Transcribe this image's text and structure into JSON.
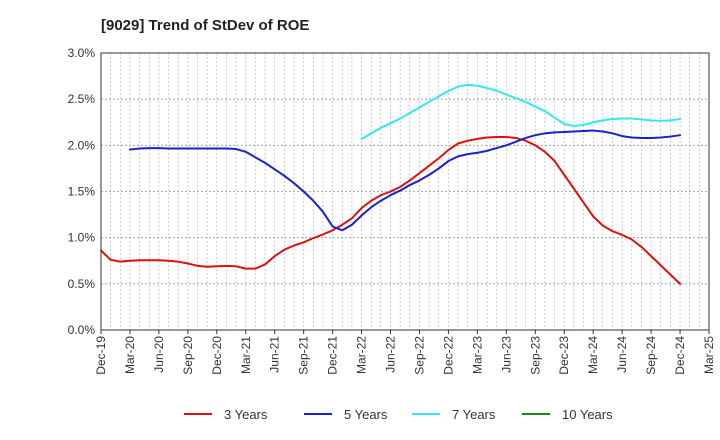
{
  "chart_data": {
    "type": "line",
    "title": "[9029]  Trend of StDev of ROE",
    "xlabel": "",
    "ylabel": "",
    "ylim": [
      0,
      3.0
    ],
    "y_ticks": [
      "0.0%",
      "0.5%",
      "1.0%",
      "1.5%",
      "2.0%",
      "2.5%",
      "3.0%"
    ],
    "x_ticks": [
      "Dec-19",
      "Mar-20",
      "Jun-20",
      "Sep-20",
      "Dec-20",
      "Mar-21",
      "Jun-21",
      "Sep-21",
      "Dec-21",
      "Mar-22",
      "Jun-22",
      "Sep-22",
      "Dec-22",
      "Mar-23",
      "Jun-23",
      "Sep-23",
      "Dec-23",
      "Mar-24",
      "Jun-24",
      "Sep-24",
      "Dec-24",
      "Mar-25"
    ],
    "x_range": [
      "2019-12",
      "2025-03"
    ],
    "grid": true,
    "legend_position": "bottom",
    "series": [
      {
        "name": "3 Years",
        "color": "#dd1111",
        "points": [
          [
            "2019-12",
            0.86
          ],
          [
            "2020-01",
            0.76
          ],
          [
            "2020-02",
            0.74
          ],
          [
            "2020-03",
            0.75
          ],
          [
            "2020-04",
            0.755
          ],
          [
            "2020-05",
            0.755
          ],
          [
            "2020-06",
            0.755
          ],
          [
            "2020-07",
            0.75
          ],
          [
            "2020-08",
            0.74
          ],
          [
            "2020-09",
            0.72
          ],
          [
            "2020-10",
            0.695
          ],
          [
            "2020-11",
            0.685
          ],
          [
            "2020-12",
            0.69
          ],
          [
            "2021-01",
            0.695
          ],
          [
            "2021-02",
            0.69
          ],
          [
            "2021-03",
            0.665
          ],
          [
            "2021-04",
            0.665
          ],
          [
            "2021-05",
            0.71
          ],
          [
            "2021-06",
            0.8
          ],
          [
            "2021-07",
            0.87
          ],
          [
            "2021-08",
            0.915
          ],
          [
            "2021-09",
            0.95
          ],
          [
            "2021-10",
            0.995
          ],
          [
            "2021-11",
            1.035
          ],
          [
            "2021-12",
            1.08
          ],
          [
            "2022-01",
            1.14
          ],
          [
            "2022-02",
            1.21
          ],
          [
            "2022-03",
            1.32
          ],
          [
            "2022-04",
            1.4
          ],
          [
            "2022-05",
            1.46
          ],
          [
            "2022-06",
            1.5
          ],
          [
            "2022-07",
            1.55
          ],
          [
            "2022-08",
            1.62
          ],
          [
            "2022-09",
            1.7
          ],
          [
            "2022-10",
            1.78
          ],
          [
            "2022-11",
            1.86
          ],
          [
            "2022-12",
            1.95
          ],
          [
            "2023-01",
            2.02
          ],
          [
            "2023-02",
            2.05
          ],
          [
            "2023-03",
            2.07
          ],
          [
            "2023-04",
            2.085
          ],
          [
            "2023-05",
            2.09
          ],
          [
            "2023-06",
            2.09
          ],
          [
            "2023-07",
            2.08
          ],
          [
            "2023-08",
            2.05
          ],
          [
            "2023-09",
            2.0
          ],
          [
            "2023-10",
            1.93
          ],
          [
            "2023-11",
            1.83
          ],
          [
            "2023-12",
            1.68
          ],
          [
            "2024-01",
            1.53
          ],
          [
            "2024-02",
            1.38
          ],
          [
            "2024-03",
            1.23
          ],
          [
            "2024-04",
            1.13
          ],
          [
            "2024-05",
            1.07
          ],
          [
            "2024-06",
            1.03
          ],
          [
            "2024-07",
            0.98
          ],
          [
            "2024-08",
            0.9
          ],
          [
            "2024-09",
            0.8
          ],
          [
            "2024-10",
            0.7
          ],
          [
            "2024-11",
            0.6
          ],
          [
            "2024-12",
            0.5
          ]
        ]
      },
      {
        "name": "5 Years",
        "color": "#1a23c8",
        "points": [
          [
            "2020-03",
            1.955
          ],
          [
            "2020-04",
            1.965
          ],
          [
            "2020-05",
            1.97
          ],
          [
            "2020-06",
            1.97
          ],
          [
            "2020-07",
            1.965
          ],
          [
            "2020-08",
            1.965
          ],
          [
            "2020-09",
            1.965
          ],
          [
            "2020-10",
            1.965
          ],
          [
            "2020-11",
            1.965
          ],
          [
            "2020-12",
            1.965
          ],
          [
            "2021-01",
            1.965
          ],
          [
            "2021-02",
            1.96
          ],
          [
            "2021-03",
            1.93
          ],
          [
            "2021-04",
            1.87
          ],
          [
            "2021-05",
            1.81
          ],
          [
            "2021-06",
            1.74
          ],
          [
            "2021-07",
            1.67
          ],
          [
            "2021-08",
            1.59
          ],
          [
            "2021-09",
            1.5
          ],
          [
            "2021-10",
            1.4
          ],
          [
            "2021-11",
            1.28
          ],
          [
            "2021-12",
            1.12
          ],
          [
            "2022-01",
            1.08
          ],
          [
            "2022-02",
            1.14
          ],
          [
            "2022-03",
            1.24
          ],
          [
            "2022-04",
            1.33
          ],
          [
            "2022-05",
            1.4
          ],
          [
            "2022-06",
            1.46
          ],
          [
            "2022-07",
            1.51
          ],
          [
            "2022-08",
            1.57
          ],
          [
            "2022-09",
            1.62
          ],
          [
            "2022-10",
            1.68
          ],
          [
            "2022-11",
            1.75
          ],
          [
            "2022-12",
            1.83
          ],
          [
            "2023-01",
            1.88
          ],
          [
            "2023-02",
            1.905
          ],
          [
            "2023-03",
            1.92
          ],
          [
            "2023-04",
            1.94
          ],
          [
            "2023-05",
            1.97
          ],
          [
            "2023-06",
            2.0
          ],
          [
            "2023-07",
            2.04
          ],
          [
            "2023-08",
            2.08
          ],
          [
            "2023-09",
            2.11
          ],
          [
            "2023-10",
            2.13
          ],
          [
            "2023-11",
            2.14
          ],
          [
            "2023-12",
            2.145
          ],
          [
            "2024-01",
            2.15
          ],
          [
            "2024-02",
            2.155
          ],
          [
            "2024-03",
            2.16
          ],
          [
            "2024-04",
            2.15
          ],
          [
            "2024-05",
            2.13
          ],
          [
            "2024-06",
            2.1
          ],
          [
            "2024-07",
            2.085
          ],
          [
            "2024-08",
            2.08
          ],
          [
            "2024-09",
            2.08
          ],
          [
            "2024-10",
            2.085
          ],
          [
            "2024-11",
            2.095
          ],
          [
            "2024-12",
            2.11
          ]
        ]
      },
      {
        "name": "7 Years",
        "color": "#33e8ee",
        "points": [
          [
            "2022-03",
            2.07
          ],
          [
            "2022-04",
            2.13
          ],
          [
            "2022-05",
            2.19
          ],
          [
            "2022-06",
            2.24
          ],
          [
            "2022-07",
            2.29
          ],
          [
            "2022-08",
            2.35
          ],
          [
            "2022-09",
            2.41
          ],
          [
            "2022-10",
            2.47
          ],
          [
            "2022-11",
            2.53
          ],
          [
            "2022-12",
            2.59
          ],
          [
            "2023-01",
            2.635
          ],
          [
            "2023-02",
            2.655
          ],
          [
            "2023-03",
            2.645
          ],
          [
            "2023-04",
            2.62
          ],
          [
            "2023-05",
            2.59
          ],
          [
            "2023-06",
            2.55
          ],
          [
            "2023-07",
            2.51
          ],
          [
            "2023-08",
            2.47
          ],
          [
            "2023-09",
            2.42
          ],
          [
            "2023-10",
            2.37
          ],
          [
            "2023-11",
            2.3
          ],
          [
            "2023-12",
            2.23
          ],
          [
            "2024-01",
            2.21
          ],
          [
            "2024-02",
            2.22
          ],
          [
            "2024-03",
            2.25
          ],
          [
            "2024-04",
            2.27
          ],
          [
            "2024-05",
            2.285
          ],
          [
            "2024-06",
            2.29
          ],
          [
            "2024-07",
            2.29
          ],
          [
            "2024-08",
            2.28
          ],
          [
            "2024-09",
            2.27
          ],
          [
            "2024-10",
            2.265
          ],
          [
            "2024-11",
            2.27
          ],
          [
            "2024-12",
            2.285
          ]
        ]
      },
      {
        "name": "10 Years",
        "color": "#1b8a1b",
        "points": []
      }
    ]
  }
}
